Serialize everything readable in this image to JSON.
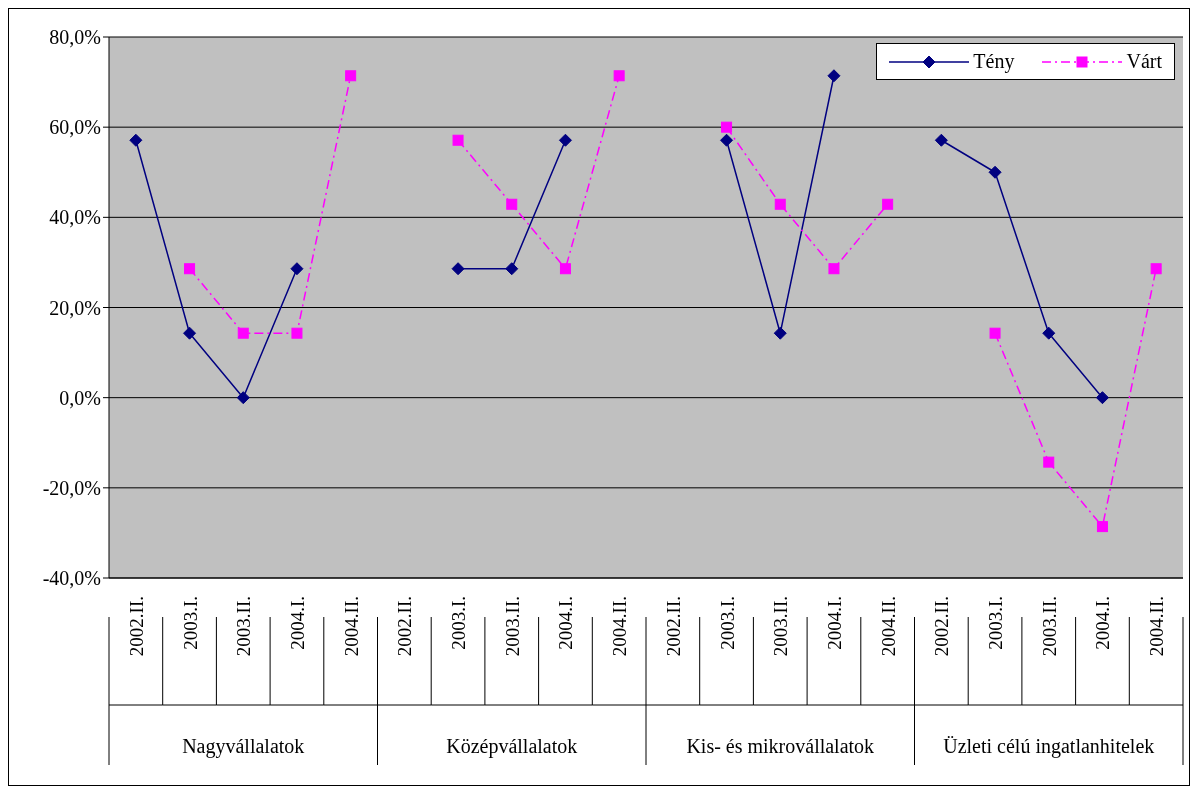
{
  "chart_data": {
    "type": "line",
    "categories": [
      "2002.II.",
      "2003.I.",
      "2003.II.",
      "2004.I.",
      "2004.II.",
      "2002.II.",
      "2003.I.",
      "2003.II.",
      "2004.I.",
      "2004.II.",
      "2002.II.",
      "2003.I.",
      "2003.II.",
      "2004.I.",
      "2004.II.",
      "2002.II.",
      "2003.I.",
      "2003.II.",
      "2004.I.",
      "2004.II."
    ],
    "series": [
      {
        "name": "Tény",
        "color": "#000080",
        "marker": "diamond",
        "line_style": "solid",
        "values": [
          57.1,
          14.3,
          0,
          28.6,
          null,
          null,
          28.6,
          28.6,
          57.1,
          null,
          null,
          57.1,
          14.3,
          71.4,
          null,
          57.1,
          50,
          14.3,
          0,
          null
        ]
      },
      {
        "name": "Várt",
        "color": "#ff00ff",
        "marker": "square",
        "line_style": "dashed",
        "values": [
          null,
          28.6,
          14.3,
          14.3,
          71.4,
          null,
          57.1,
          42.9,
          28.6,
          71.4,
          null,
          60,
          42.9,
          28.6,
          42.9,
          null,
          14.3,
          -14.3,
          -28.6,
          28.6
        ]
      }
    ],
    "annotations": [
      "Nagyvállalatok",
      "Középvállalatok",
      "Kis- és mikrovállalatok",
      "Üzleti célú ingatlanhitelek"
    ],
    "ylim": [
      -40,
      80
    ],
    "yticks": [
      {
        "value": -40,
        "label": "-40,0%"
      },
      {
        "value": -20,
        "label": "-20,0%"
      },
      {
        "value": 0,
        "label": "0,0%"
      },
      {
        "value": 20,
        "label": "20,0%"
      },
      {
        "value": 40,
        "label": "40,0%"
      },
      {
        "value": 60,
        "label": "60,0%"
      },
      {
        "value": 80,
        "label": "80,0%"
      }
    ],
    "grid": "y",
    "legend": "top right"
  }
}
